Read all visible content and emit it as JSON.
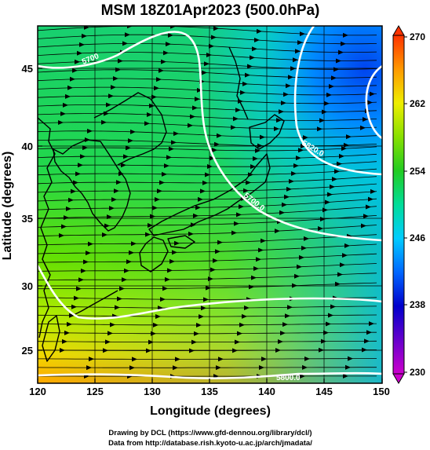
{
  "title": "MSM 18Z01Apr2023 (500.0hPa)",
  "x_axis": {
    "label": "Longitude (degrees)",
    "ticks": [
      "120",
      "125",
      "130",
      "135",
      "140",
      "145",
      "150"
    ],
    "range": [
      120,
      150
    ]
  },
  "y_axis": {
    "label": "Latitude  (degrees)",
    "ticks": [
      "25",
      "30",
      "35",
      "40",
      "45"
    ],
    "range": [
      22.5,
      47.6
    ]
  },
  "colorbar": {
    "labels": [
      "270",
      "262",
      "254",
      "246",
      "238",
      "230"
    ],
    "min": 230,
    "max": 270,
    "colors": [
      "#cc00cc",
      "#3300cc",
      "#0066ff",
      "#00ccff",
      "#00dd88",
      "#22cc22",
      "#99ee00",
      "#ffff00",
      "#ff9900",
      "#ff3300"
    ]
  },
  "contour_labels": [
    "5700",
    "5820.0",
    "5700.0",
    "5800.0"
  ],
  "credits": {
    "line1": "Drawing by DCL (https://www.gfd-dennou.org/library/dcl/)",
    "line2": "Data from http://database.rish.kyoto-u.ac.jp/arch/jmadata/"
  },
  "colors": {
    "contour": "#ffffff",
    "streamline": "#000000",
    "coast": "#000000"
  }
}
